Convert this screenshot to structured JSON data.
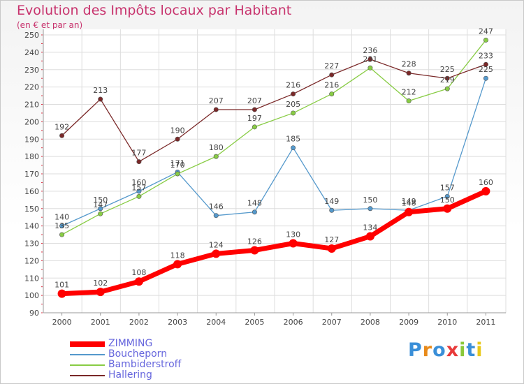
{
  "chart_data": {
    "type": "line",
    "title": "Evolution des Impôts locaux par Habitant",
    "subtitle": "(en € et par an)",
    "x": [
      "2000",
      "2001",
      "2002",
      "2003",
      "2004",
      "2005",
      "2006",
      "2007",
      "2008",
      "2009",
      "2010",
      "2011"
    ],
    "ylim": [
      90,
      250
    ],
    "yticks": [
      90,
      100,
      110,
      120,
      130,
      140,
      150,
      160,
      170,
      180,
      190,
      200,
      210,
      220,
      230,
      240,
      250
    ],
    "grid": true,
    "legend_position": "bottom-left",
    "series": [
      {
        "name": "ZIMMING",
        "color": "#ff0000",
        "values": [
          101,
          102,
          108,
          118,
          124,
          126,
          130,
          127,
          134,
          148,
          150,
          160
        ]
      },
      {
        "name": "Boucheporn",
        "color": "#5599cc",
        "values": [
          140,
          150,
          160,
          171,
          146,
          148,
          185,
          149,
          150,
          149,
          157,
          225
        ]
      },
      {
        "name": "Bambiderstroff",
        "color": "#88cc44",
        "values": [
          135,
          147,
          157,
          170,
          180,
          197,
          205,
          216,
          231,
          212,
          219,
          247
        ]
      },
      {
        "name": "Hallering",
        "color": "#7a2828",
        "values": [
          192,
          213,
          177,
          190,
          207,
          207,
          216,
          227,
          236,
          228,
          225,
          233
        ]
      }
    ]
  },
  "branding": {
    "logo_letters": [
      "P",
      "r",
      "o",
      "x",
      "i",
      "t",
      "i"
    ],
    "logo_colors": [
      "#3a8fd8",
      "#e88a1a",
      "#3a8fd8",
      "#e83a3a",
      "#8ac83a",
      "#3a8fd8",
      "#e8c81a"
    ]
  }
}
